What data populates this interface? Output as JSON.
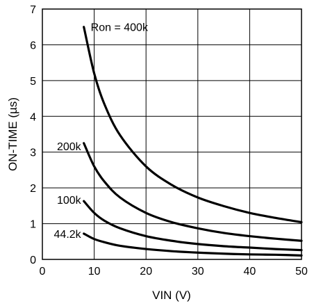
{
  "chart_data": {
    "type": "line",
    "xlabel": "VIN (V)",
    "ylabel": "ON-TIME (µs)",
    "xlim": [
      0,
      50
    ],
    "ylim": [
      0,
      7
    ],
    "x_ticks": [
      "0",
      "10",
      "20",
      "30",
      "40",
      "50"
    ],
    "y_ticks": [
      "0",
      "1",
      "2",
      "3",
      "4",
      "5",
      "6",
      "7"
    ],
    "grid": true,
    "series": [
      {
        "name": "Ron = 400k",
        "x": [
          8,
          10,
          12,
          15,
          20,
          25,
          30,
          35,
          40,
          45,
          50
        ],
        "y": [
          6.5,
          5.2,
          4.33,
          3.47,
          2.6,
          2.08,
          1.73,
          1.49,
          1.3,
          1.16,
          1.04
        ]
      },
      {
        "name": "200k",
        "x": [
          8,
          10,
          12,
          15,
          20,
          25,
          30,
          35,
          40,
          45,
          50
        ],
        "y": [
          3.25,
          2.6,
          2.17,
          1.73,
          1.3,
          1.04,
          0.87,
          0.74,
          0.65,
          0.58,
          0.52
        ]
      },
      {
        "name": "100k",
        "x": [
          8,
          10,
          12,
          15,
          20,
          25,
          30,
          35,
          40,
          45,
          50
        ],
        "y": [
          1.63,
          1.3,
          1.08,
          0.87,
          0.65,
          0.52,
          0.43,
          0.37,
          0.33,
          0.29,
          0.26
        ]
      },
      {
        "name": "44.2k",
        "x": [
          8,
          10,
          12,
          15,
          20,
          25,
          30,
          35,
          40,
          45,
          50
        ],
        "y": [
          0.72,
          0.57,
          0.48,
          0.38,
          0.29,
          0.23,
          0.19,
          0.16,
          0.14,
          0.13,
          0.11
        ]
      }
    ]
  }
}
